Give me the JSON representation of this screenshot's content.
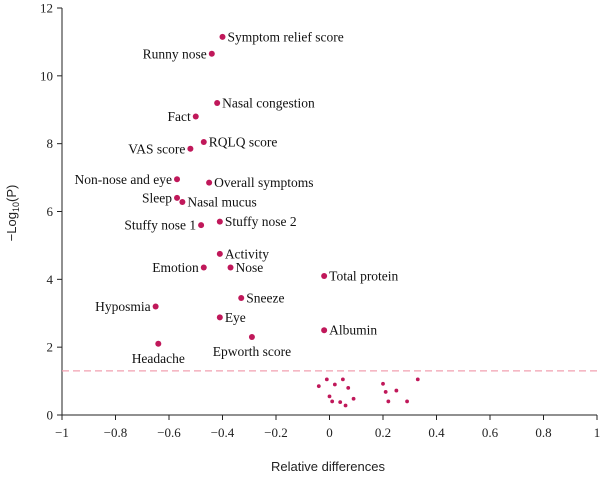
{
  "chart_data": {
    "type": "scatter",
    "title": "",
    "xlabel": "Relative differences",
    "ylabel_main": "−Log",
    "ylabel_sub": "10",
    "ylabel_tail": "(P)",
    "xlim": [
      -1,
      1
    ],
    "ylim": [
      0,
      12
    ],
    "xticks": [
      -1,
      -0.8,
      -0.6,
      -0.4,
      -0.2,
      0,
      0.2,
      0.4,
      0.6,
      0.8,
      1
    ],
    "xtick_labels": [
      "−1",
      "−0.8",
      "−0.6",
      "−0.4",
      "−0.2",
      "0",
      "0.2",
      "0.4",
      "0.6",
      "0.8",
      "1"
    ],
    "yticks": [
      0,
      2,
      4,
      6,
      8,
      10,
      12
    ],
    "ytick_labels": [
      "0",
      "2",
      "4",
      "6",
      "8",
      "10",
      "12"
    ],
    "threshold": 1.3,
    "colors": {
      "point": "#c0185a",
      "threshold": "#f2a0b0",
      "axis": "#222222"
    },
    "labeled_points": [
      {
        "label": "Symptom relief score",
        "x": -0.4,
        "y": 11.15,
        "anchor": "right"
      },
      {
        "label": "Runny nose",
        "x": -0.44,
        "y": 10.65,
        "anchor": "left"
      },
      {
        "label": "Nasal congestion",
        "x": -0.42,
        "y": 9.2,
        "anchor": "right"
      },
      {
        "label": "Fact",
        "x": -0.5,
        "y": 8.8,
        "anchor": "left"
      },
      {
        "label": "RQLQ score",
        "x": -0.47,
        "y": 8.05,
        "anchor": "right"
      },
      {
        "label": "VAS score",
        "x": -0.52,
        "y": 7.85,
        "anchor": "left"
      },
      {
        "label": "Non-nose and eye",
        "x": -0.57,
        "y": 6.95,
        "anchor": "left"
      },
      {
        "label": "Overall symptoms",
        "x": -0.45,
        "y": 6.85,
        "anchor": "right"
      },
      {
        "label": "Sleep",
        "x": -0.57,
        "y": 6.4,
        "anchor": "left"
      },
      {
        "label": "Nasal mucus",
        "x": -0.55,
        "y": 6.28,
        "anchor": "right"
      },
      {
        "label": "Stuffy nose 1",
        "x": -0.48,
        "y": 5.6,
        "anchor": "left"
      },
      {
        "label": "Stuffy nose 2",
        "x": -0.41,
        "y": 5.7,
        "anchor": "right"
      },
      {
        "label": "Activity",
        "x": -0.41,
        "y": 4.75,
        "anchor": "right"
      },
      {
        "label": "Emotion",
        "x": -0.47,
        "y": 4.35,
        "anchor": "left"
      },
      {
        "label": "Nose",
        "x": -0.37,
        "y": 4.35,
        "anchor": "right"
      },
      {
        "label": "Total protein",
        "x": -0.02,
        "y": 4.1,
        "anchor": "right"
      },
      {
        "label": "Hyposmia",
        "x": -0.65,
        "y": 3.2,
        "anchor": "left"
      },
      {
        "label": "Sneeze",
        "x": -0.33,
        "y": 3.45,
        "anchor": "right"
      },
      {
        "label": "Eye",
        "x": -0.41,
        "y": 2.88,
        "anchor": "right"
      },
      {
        "label": "Albumin",
        "x": -0.02,
        "y": 2.5,
        "anchor": "right"
      },
      {
        "label": "Epworth score",
        "x": -0.29,
        "y": 2.3,
        "anchor": "below"
      },
      {
        "label": "Headache",
        "x": -0.64,
        "y": 2.1,
        "anchor": "below"
      }
    ],
    "unlabeled_points": [
      {
        "x": -0.04,
        "y": 0.85
      },
      {
        "x": -0.01,
        "y": 1.05
      },
      {
        "x": 0.02,
        "y": 0.9
      },
      {
        "x": 0.05,
        "y": 1.05
      },
      {
        "x": 0.07,
        "y": 0.8
      },
      {
        "x": 0.0,
        "y": 0.55
      },
      {
        "x": 0.01,
        "y": 0.4
      },
      {
        "x": 0.04,
        "y": 0.38
      },
      {
        "x": 0.06,
        "y": 0.28
      },
      {
        "x": 0.09,
        "y": 0.48
      },
      {
        "x": 0.2,
        "y": 0.92
      },
      {
        "x": 0.21,
        "y": 0.68
      },
      {
        "x": 0.22,
        "y": 0.4
      },
      {
        "x": 0.25,
        "y": 0.72
      },
      {
        "x": 0.29,
        "y": 0.4
      },
      {
        "x": 0.33,
        "y": 1.05
      }
    ]
  }
}
